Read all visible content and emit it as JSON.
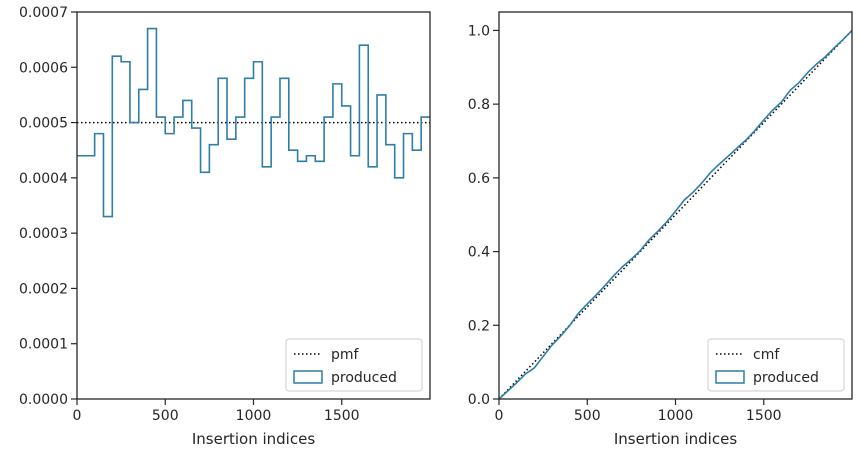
{
  "chart_data": [
    {
      "type": "line",
      "xlabel": "Insertion indices",
      "ylabel": "",
      "xlim": [
        0,
        2000
      ],
      "ylim": [
        0,
        0.0007
      ],
      "xticks": [
        0,
        500,
        1000,
        1500
      ],
      "xtick_labels": [
        "0",
        "500",
        "1000",
        "1500"
      ],
      "yticks": [
        0,
        0.0001,
        0.0002,
        0.0003,
        0.0004,
        0.0005,
        0.0006,
        0.0007
      ],
      "ytick_labels": [
        "0.0000",
        "0.0001",
        "0.0002",
        "0.0003",
        "0.0004",
        "0.0005",
        "0.0006",
        "0.0007"
      ],
      "legend_position": "lower-right",
      "series": [
        {
          "name": "pmf",
          "style": "dotted",
          "color": "#000000",
          "x": [
            0,
            2000
          ],
          "y": [
            0.0005,
            0.0005
          ]
        },
        {
          "name": "produced",
          "style": "step",
          "color": "#2e7ea6",
          "bin_width": 50,
          "x": [
            0,
            50,
            100,
            150,
            200,
            250,
            300,
            350,
            400,
            450,
            500,
            550,
            600,
            650,
            700,
            750,
            800,
            850,
            900,
            950,
            1000,
            1050,
            1100,
            1150,
            1200,
            1250,
            1300,
            1350,
            1400,
            1450,
            1500,
            1550,
            1600,
            1650,
            1700,
            1750,
            1800,
            1850,
            1900,
            1950
          ],
          "values": [
            0.00044,
            0.00044,
            0.00048,
            0.00033,
            0.00062,
            0.00061,
            0.0005,
            0.00056,
            0.00067,
            0.00051,
            0.00048,
            0.00051,
            0.00054,
            0.00049,
            0.00041,
            0.00046,
            0.00058,
            0.00047,
            0.00051,
            0.00058,
            0.00061,
            0.00042,
            0.00051,
            0.00058,
            0.00045,
            0.00043,
            0.00044,
            0.00043,
            0.00051,
            0.00057,
            0.00053,
            0.00044,
            0.00064,
            0.00042,
            0.00055,
            0.00046,
            0.0004,
            0.00048,
            0.00045,
            0.00051
          ]
        }
      ]
    },
    {
      "type": "line",
      "xlabel": "Insertion indices",
      "ylabel": "",
      "xlim": [
        0,
        2000
      ],
      "ylim": [
        0,
        1.05
      ],
      "xticks": [
        0,
        500,
        1000,
        1500
      ],
      "xtick_labels": [
        "0",
        "500",
        "1000",
        "1500"
      ],
      "yticks": [
        0,
        0.2,
        0.4,
        0.6,
        0.8,
        1.0
      ],
      "ytick_labels": [
        "0.0",
        "0.2",
        "0.4",
        "0.6",
        "0.8",
        "1.0"
      ],
      "legend_position": "lower-right",
      "series": [
        {
          "name": "cmf",
          "style": "dotted",
          "color": "#000000",
          "x": [
            0,
            2000
          ],
          "y": [
            0,
            1.0
          ]
        },
        {
          "name": "produced",
          "style": "line",
          "color": "#2e7ea6",
          "x": [
            0,
            50,
            100,
            150,
            200,
            250,
            300,
            350,
            400,
            450,
            500,
            550,
            600,
            650,
            700,
            750,
            800,
            850,
            900,
            950,
            1000,
            1050,
            1100,
            1150,
            1200,
            1250,
            1300,
            1350,
            1400,
            1450,
            1500,
            1550,
            1600,
            1650,
            1700,
            1750,
            1800,
            1850,
            1900,
            1950,
            2000
          ],
          "y": [
            0,
            0.022,
            0.044,
            0.068,
            0.0845,
            0.1155,
            0.146,
            0.171,
            0.199,
            0.2325,
            0.258,
            0.282,
            0.3075,
            0.3345,
            0.359,
            0.3795,
            0.4025,
            0.4315,
            0.455,
            0.4805,
            0.5095,
            0.54,
            0.561,
            0.5865,
            0.6155,
            0.638,
            0.6595,
            0.6815,
            0.703,
            0.7285,
            0.757,
            0.7835,
            0.8055,
            0.8375,
            0.8585,
            0.886,
            0.909,
            0.929,
            0.953,
            0.9755,
            1.0
          ]
        }
      ]
    }
  ]
}
